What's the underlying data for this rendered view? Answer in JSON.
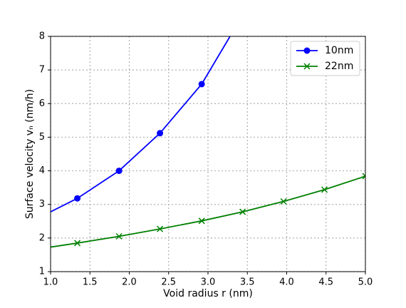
{
  "chart_data": {
    "type": "line",
    "xlabel": "Void radius r (nm)",
    "ylabel": "Surface velocity vₙ (nm/h)",
    "xlim": [
      1.0,
      5.0
    ],
    "ylim": [
      1,
      8
    ],
    "xticks": [
      {
        "value": 1.0,
        "label": "1.0"
      },
      {
        "value": 1.5,
        "label": "1.5"
      },
      {
        "value": 2.0,
        "label": "2.0"
      },
      {
        "value": 2.5,
        "label": "2.5"
      },
      {
        "value": 3.0,
        "label": "3.0"
      },
      {
        "value": 3.5,
        "label": "3.5"
      },
      {
        "value": 4.0,
        "label": "4.0"
      },
      {
        "value": 4.5,
        "label": "4.5"
      },
      {
        "value": 5.0,
        "label": "5.0"
      }
    ],
    "yticks": [
      1,
      2,
      3,
      4,
      5,
      6,
      7,
      8
    ],
    "grid": true,
    "legend": "upper right",
    "series": [
      {
        "name": "10nm",
        "color": "#0000ff",
        "marker": "circle",
        "x": [
          1.34,
          1.87,
          2.39,
          2.92
        ],
        "values": [
          3.18,
          4.0,
          5.12,
          6.58
        ],
        "curve": {
          "x": [
            1.0,
            1.34,
            1.87,
            2.39,
            2.92,
            3.28
          ],
          "values": [
            2.78,
            3.18,
            4.0,
            5.12,
            6.58,
            8.0
          ]
        }
      },
      {
        "name": "22nm",
        "color": "#008000",
        "marker": "x",
        "x": [
          1.34,
          1.87,
          2.39,
          2.92,
          3.44,
          3.96,
          4.48,
          5.0
        ],
        "values": [
          1.85,
          2.05,
          2.27,
          2.51,
          2.78,
          3.09,
          3.44,
          3.84
        ],
        "curve": {
          "x": [
            1.0,
            1.34,
            1.87,
            2.39,
            2.92,
            3.44,
            3.96,
            4.48,
            5.0
          ],
          "values": [
            1.73,
            1.85,
            2.05,
            2.27,
            2.51,
            2.78,
            3.09,
            3.44,
            3.84
          ]
        }
      }
    ]
  }
}
